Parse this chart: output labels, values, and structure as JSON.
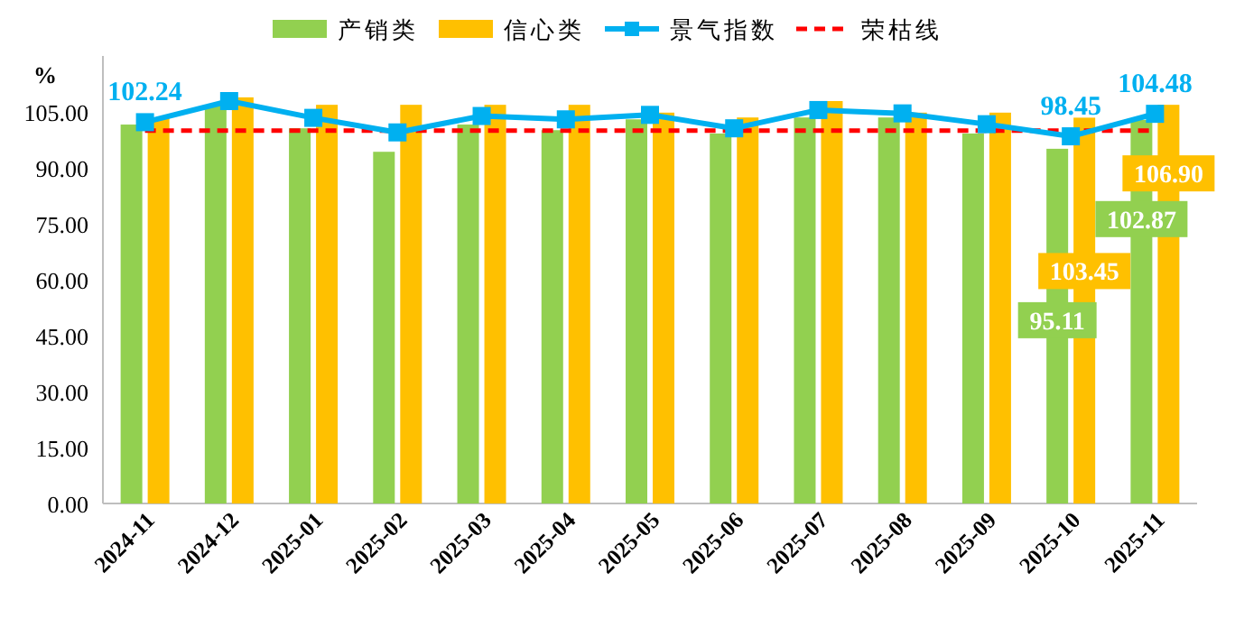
{
  "chart_data": {
    "type": "bar",
    "ylabel": "%",
    "categories": [
      "2024-11",
      "2024-12",
      "2025-01",
      "2025-02",
      "2025-03",
      "2025-04",
      "2025-05",
      "2025-06",
      "2025-07",
      "2025-08",
      "2025-09",
      "2025-10",
      "2025-11"
    ],
    "series": [
      {
        "name": "产销类",
        "color": "#92d050",
        "values": [
          101.6,
          106.8,
          100.6,
          94.3,
          101.6,
          100.1,
          103.0,
          99.2,
          103.5,
          103.5,
          99.2,
          95.11,
          102.87
        ],
        "value_labels": [
          null,
          null,
          null,
          null,
          null,
          null,
          null,
          null,
          null,
          null,
          null,
          "95.11",
          "102.87"
        ]
      },
      {
        "name": "信心类",
        "color": "#ffc000",
        "values": [
          103.5,
          108.9,
          106.9,
          106.9,
          106.9,
          106.9,
          104.8,
          103.5,
          107.9,
          104.8,
          104.8,
          103.45,
          106.9
        ],
        "value_labels": [
          null,
          null,
          null,
          null,
          null,
          null,
          null,
          null,
          null,
          null,
          null,
          "103.45",
          "106.90"
        ]
      },
      {
        "name": "景气指数",
        "type": "line",
        "color": "#00b0f0",
        "marker": "square",
        "values": [
          102.24,
          107.9,
          103.4,
          99.5,
          103.9,
          103.0,
          104.2,
          100.6,
          105.5,
          104.6,
          101.7,
          98.45,
          104.48
        ],
        "value_labels": [
          "102.24",
          null,
          null,
          null,
          null,
          null,
          null,
          null,
          null,
          null,
          null,
          "98.45",
          "104.48"
        ]
      }
    ],
    "ref_lines": [
      {
        "axis": "y",
        "value": 100,
        "label": "荣枯线",
        "color": "#ff0000",
        "line_style": "dashed"
      }
    ],
    "ylim": [
      0,
      120
    ],
    "yticks": [
      {
        "value": 0,
        "label": "0.00"
      },
      {
        "value": 15,
        "label": "15.00"
      },
      {
        "value": 30,
        "label": "30.00"
      },
      {
        "value": 45,
        "label": "45.00"
      },
      {
        "value": 60,
        "label": "60.00"
      },
      {
        "value": 75,
        "label": "75.00"
      },
      {
        "value": 90,
        "label": "90.00"
      },
      {
        "value": 105,
        "label": "105.00"
      }
    ],
    "grid": false,
    "legend": "top"
  }
}
